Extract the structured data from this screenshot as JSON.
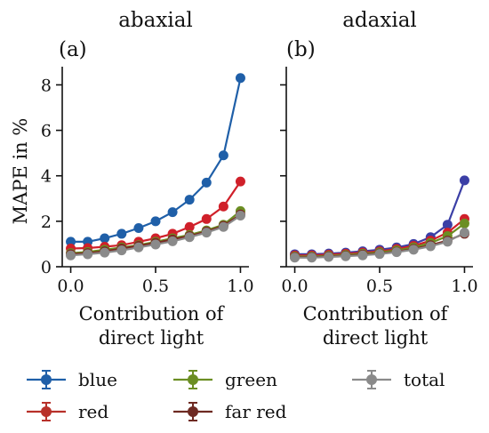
{
  "chart_data": [
    {
      "type": "line",
      "title": "abaxial",
      "panel_label": "(a)",
      "xlabel": [
        "Contribution of",
        "direct light"
      ],
      "ylabel": "MAPE in %",
      "xlim": [
        -0.05,
        1.05
      ],
      "ylim": [
        0,
        8.8
      ],
      "xticks": [
        "0.0",
        "0.5",
        "1.0"
      ],
      "yticks": [
        "0",
        "2",
        "4",
        "6",
        "8"
      ],
      "grid": false,
      "x": [
        0.0,
        0.1,
        0.2,
        0.3,
        0.4,
        0.5,
        0.6,
        0.7,
        0.8,
        0.9,
        1.0
      ],
      "series": [
        {
          "name": "blue",
          "color": "#1f5fa8",
          "values": [
            1.1,
            1.1,
            1.25,
            1.45,
            1.7,
            2.0,
            2.4,
            2.95,
            3.7,
            4.9,
            8.3
          ]
        },
        {
          "name": "red",
          "color": "#d0202a",
          "values": [
            0.8,
            0.82,
            0.88,
            0.95,
            1.1,
            1.25,
            1.45,
            1.75,
            2.1,
            2.65,
            3.75
          ]
        },
        {
          "name": "green",
          "color": "#6b8e23",
          "values": [
            0.6,
            0.65,
            0.75,
            0.85,
            0.95,
            1.1,
            1.25,
            1.4,
            1.6,
            1.85,
            2.45
          ]
        },
        {
          "name": "far red",
          "color": "#7a2a22",
          "values": [
            0.55,
            0.6,
            0.68,
            0.8,
            0.92,
            1.05,
            1.2,
            1.35,
            1.55,
            1.8,
            2.3
          ]
        },
        {
          "name": "total",
          "color": "#8a8a8a",
          "values": [
            0.5,
            0.55,
            0.62,
            0.72,
            0.85,
            0.98,
            1.12,
            1.3,
            1.5,
            1.75,
            2.25
          ]
        }
      ]
    },
    {
      "type": "line",
      "title": "adaxial",
      "panel_label": "(b)",
      "xlabel": [
        "Contribution of",
        "direct light"
      ],
      "ylabel": "",
      "xlim": [
        -0.05,
        1.05
      ],
      "ylim": [
        0,
        8.8
      ],
      "xticks": [
        "0.0",
        "0.5",
        "1.0"
      ],
      "yticks": [],
      "grid": false,
      "x": [
        0.0,
        0.1,
        0.2,
        0.3,
        0.4,
        0.5,
        0.6,
        0.7,
        0.8,
        0.9,
        1.0
      ],
      "series": [
        {
          "name": "blue",
          "color": "#3b3fa6",
          "values": [
            0.55,
            0.55,
            0.58,
            0.62,
            0.68,
            0.75,
            0.85,
            1.0,
            1.3,
            1.85,
            3.8
          ]
        },
        {
          "name": "red",
          "color": "#d0202a",
          "values": [
            0.5,
            0.5,
            0.53,
            0.57,
            0.62,
            0.68,
            0.78,
            0.92,
            1.15,
            1.5,
            2.1
          ]
        },
        {
          "name": "green",
          "color": "#6b8e23",
          "values": [
            0.45,
            0.45,
            0.48,
            0.52,
            0.57,
            0.63,
            0.72,
            0.85,
            1.05,
            1.35,
            1.9
          ]
        },
        {
          "name": "far red",
          "color": "#7a2a22",
          "values": [
            0.42,
            0.42,
            0.45,
            0.48,
            0.53,
            0.58,
            0.66,
            0.78,
            0.95,
            1.15,
            1.45
          ]
        },
        {
          "name": "total",
          "color": "#8a8a8a",
          "values": [
            0.4,
            0.4,
            0.43,
            0.46,
            0.5,
            0.56,
            0.64,
            0.75,
            0.9,
            1.1,
            1.5
          ]
        }
      ]
    }
  ],
  "legend": {
    "placement": "bottom",
    "items": [
      {
        "label": "blue",
        "color": "#1f5fa8"
      },
      {
        "label": "green",
        "color": "#6b8e23"
      },
      {
        "label": "total",
        "color": "#8a8a8a"
      },
      {
        "label": "red",
        "color": "#b8312a"
      },
      {
        "label": "far red",
        "color": "#6e2a22"
      }
    ]
  }
}
